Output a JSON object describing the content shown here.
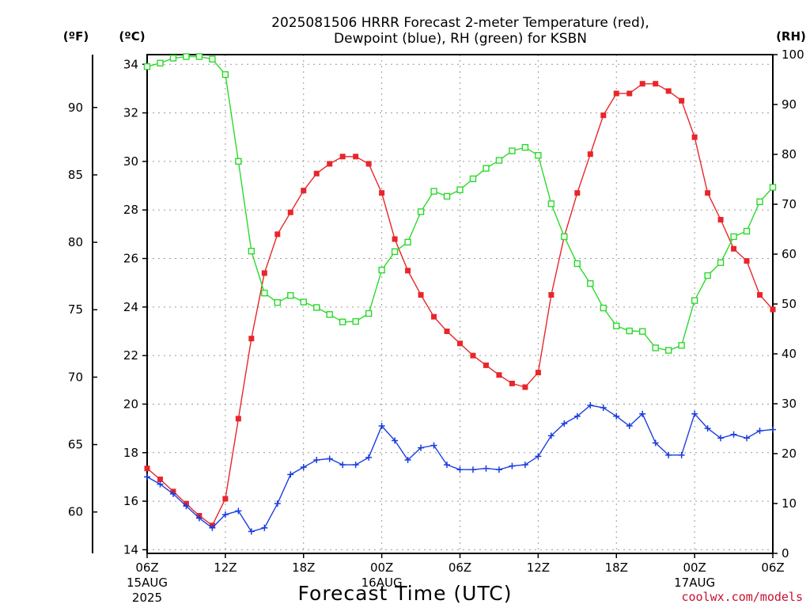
{
  "page": {
    "title_line1": "2025081506 HRRR Forecast 2-meter Temperature (red),",
    "title_line2": "Dewpoint (blue), RH (green) for KSBN",
    "unit_f": "(ºF)",
    "unit_c": "(ºC)",
    "unit_rh": "(RH)",
    "credit": "coolwx.com/models"
  },
  "chart_data": {
    "type": "line",
    "title": "2025081506 HRRR Forecast 2-meter Temperature (red), Dewpoint (blue), RH (green) for KSBN",
    "xlabel": "Forecast Time (UTC)",
    "x_hours": [
      0,
      1,
      2,
      3,
      4,
      5,
      6,
      7,
      8,
      9,
      10,
      11,
      12,
      13,
      14,
      15,
      16,
      17,
      18,
      19,
      20,
      21,
      22,
      23,
      24,
      25,
      26,
      27,
      28,
      29,
      30,
      31,
      32,
      33,
      34,
      35,
      36,
      37,
      38,
      39,
      40,
      41,
      42,
      43,
      44,
      45,
      46,
      47,
      48
    ],
    "x_ticks": [
      {
        "hour": 0,
        "label": "06Z",
        "sub1": "15AUG",
        "sub2": "2025"
      },
      {
        "hour": 6,
        "label": "12Z",
        "sub1": "",
        "sub2": ""
      },
      {
        "hour": 12,
        "label": "18Z",
        "sub1": "",
        "sub2": ""
      },
      {
        "hour": 18,
        "label": "00Z",
        "sub1": "16AUG",
        "sub2": ""
      },
      {
        "hour": 24,
        "label": "06Z",
        "sub1": "",
        "sub2": ""
      },
      {
        "hour": 30,
        "label": "12Z",
        "sub1": "",
        "sub2": ""
      },
      {
        "hour": 36,
        "label": "18Z",
        "sub1": "",
        "sub2": ""
      },
      {
        "hour": 42,
        "label": "00Z",
        "sub1": "17AUG",
        "sub2": ""
      },
      {
        "hour": 48,
        "label": "06Z",
        "sub1": "",
        "sub2": ""
      }
    ],
    "xlim": [
      0,
      48
    ],
    "ylim_c": [
      13.85,
      34.4
    ],
    "ylim_rh": [
      0,
      100
    ],
    "y_ticks_c": [
      14,
      16,
      18,
      20,
      22,
      24,
      26,
      28,
      30,
      32,
      34
    ],
    "y_ticks_f": [
      60,
      65,
      70,
      75,
      80,
      85,
      90
    ],
    "y_ticks_rh": [
      0,
      10,
      20,
      30,
      40,
      50,
      60,
      70,
      80,
      90,
      100
    ],
    "grid": true,
    "series": [
      {
        "name": "Temperature",
        "axis": "celsius",
        "color": "#e8262a",
        "marker": "filled-square",
        "values": [
          17.35,
          16.9,
          16.4,
          15.9,
          15.4,
          15.0,
          16.1,
          19.4,
          22.7,
          25.4,
          27.0,
          27.9,
          28.8,
          29.5,
          29.9,
          30.2,
          30.2,
          29.9,
          28.7,
          26.8,
          25.5,
          24.5,
          23.6,
          23.0,
          22.5,
          22.0,
          21.6,
          21.2,
          20.85,
          20.7,
          21.3,
          24.5,
          26.9,
          28.7,
          30.3,
          31.9,
          32.8,
          32.8,
          33.2,
          33.2,
          32.9,
          32.5,
          31.0,
          28.7,
          27.6,
          26.4,
          25.9,
          24.5,
          23.9
        ]
      },
      {
        "name": "Dewpoint",
        "axis": "celsius",
        "color": "#1a3de0",
        "marker": "plus",
        "values": [
          17.0,
          16.7,
          16.3,
          15.8,
          15.3,
          14.9,
          15.45,
          15.6,
          14.75,
          14.9,
          15.9,
          17.1,
          17.4,
          17.7,
          17.75,
          17.5,
          17.5,
          17.8,
          19.1,
          18.5,
          17.7,
          18.2,
          18.3,
          17.5,
          17.3,
          17.3,
          17.35,
          17.3,
          17.45,
          17.5,
          17.85,
          18.7,
          19.2,
          19.5,
          19.95,
          19.85,
          19.5,
          19.1,
          19.6,
          18.4,
          17.9,
          17.9,
          19.6,
          19.0,
          18.6,
          18.75,
          18.6,
          18.9,
          18.95
        ]
      },
      {
        "name": "RH",
        "axis": "rh",
        "color": "#2bd92b",
        "marker": "open-square",
        "values": [
          97.6,
          98.3,
          99.3,
          99.6,
          99.6,
          99.1,
          96.0,
          78.6,
          60.6,
          52.2,
          50.3,
          51.7,
          50.4,
          49.3,
          47.9,
          46.4,
          46.5,
          48.1,
          56.8,
          60.5,
          62.4,
          68.5,
          72.6,
          71.6,
          72.9,
          75.1,
          77.2,
          78.8,
          80.7,
          81.4,
          79.8,
          70.1,
          63.5,
          58.1,
          54.1,
          49.2,
          45.6,
          44.6,
          44.5,
          41.2,
          40.7,
          41.7,
          50.7,
          55.7,
          58.3,
          63.5,
          64.6,
          70.5,
          73.4
        ]
      }
    ]
  }
}
